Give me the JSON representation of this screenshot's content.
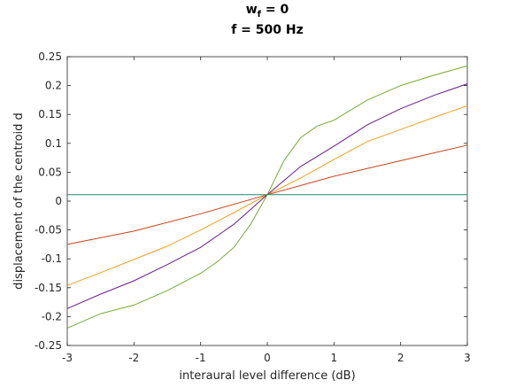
{
  "chart_data": {
    "type": "line",
    "title_lines": [
      {
        "main": "w",
        "sub": "f",
        "rest": " = 0"
      },
      {
        "main": "f = 500 Hz"
      }
    ],
    "xlabel": "interaural level difference (dB)",
    "ylabel": "displacement of the centroid d",
    "xlim": [
      -3,
      3
    ],
    "ylim": [
      -0.25,
      0.25
    ],
    "xticks": [
      "-3",
      "-2",
      "-1",
      "0",
      "1",
      "2",
      "3"
    ],
    "yticks": [
      "0.25",
      "0.2",
      "0.15",
      "0.1",
      "0.05",
      "0",
      "-0.05",
      "-0.1",
      "-0.15",
      "-0.2",
      "-0.25"
    ],
    "grid": false,
    "series": [
      {
        "color": "#c8411e",
        "x": [
          -3,
          -2,
          -1,
          0,
          1,
          2,
          3
        ],
        "y": [
          -0.075,
          -0.052,
          -0.022,
          0.011,
          0.043,
          0.07,
          0.097
        ]
      },
      {
        "color": "#f0a020",
        "x": [
          -3,
          -2.5,
          -2,
          -1.5,
          -1,
          -0.5,
          0,
          0.5,
          1,
          1.5,
          2,
          2.5,
          3
        ],
        "y": [
          -0.146,
          -0.124,
          -0.101,
          -0.078,
          -0.05,
          -0.02,
          0.011,
          0.04,
          0.072,
          0.103,
          0.124,
          0.145,
          0.165
        ]
      },
      {
        "color": "#6a1a8c",
        "x": [
          -3,
          -2.5,
          -2,
          -1.5,
          -1,
          -0.5,
          0,
          0.5,
          1,
          1.5,
          2,
          2.5,
          3
        ],
        "y": [
          -0.186,
          -0.161,
          -0.138,
          -0.11,
          -0.08,
          -0.04,
          0.011,
          0.06,
          0.095,
          0.132,
          0.16,
          0.183,
          0.203
        ]
      },
      {
        "color": "#76a832",
        "x": [
          -3,
          -2.5,
          -2,
          -1.5,
          -1,
          -0.75,
          -0.5,
          -0.25,
          0,
          0.25,
          0.5,
          0.75,
          1,
          1.5,
          2,
          2.5,
          3
        ],
        "y": [
          -0.22,
          -0.195,
          -0.18,
          -0.155,
          -0.125,
          -0.105,
          -0.08,
          -0.04,
          0.011,
          0.07,
          0.11,
          0.13,
          0.14,
          0.175,
          0.2,
          0.218,
          0.234
        ]
      },
      {
        "color": "#1a8a6e",
        "x": [
          -3,
          3
        ],
        "y": [
          0.011,
          0.011
        ]
      }
    ]
  }
}
